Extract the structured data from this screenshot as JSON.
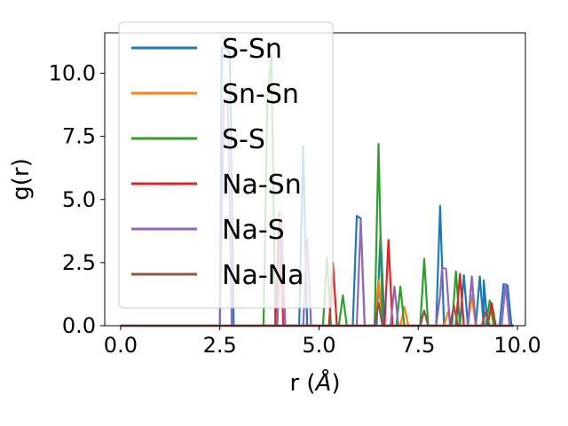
{
  "chart_data": {
    "type": "line",
    "title": "",
    "xlabel_base": "r (",
    "xlabel_unit": "Å",
    "xlabel_tail": ")",
    "ylabel": "g(r)",
    "xlim": [
      -0.4,
      10.2
    ],
    "ylim": [
      0,
      11.6
    ],
    "xticks": [
      0,
      2.5,
      5,
      7.5,
      10
    ],
    "xtick_labels": [
      "0.0",
      "2.5",
      "5.0",
      "7.5",
      "10.0"
    ],
    "yticks": [
      0,
      2.5,
      5,
      7.5,
      10
    ],
    "ytick_labels": [
      "0.0",
      "2.5",
      "5.0",
      "7.5",
      "10.0"
    ],
    "grid": false,
    "legend_position": "upper-left",
    "series": [
      {
        "name": "S-Sn",
        "color": "#1f77b4",
        "points": [
          [
            0,
            0
          ],
          [
            2.5,
            0
          ],
          [
            2.55,
            11.0
          ],
          [
            2.65,
            11.0
          ],
          [
            2.75,
            10.8
          ],
          [
            2.85,
            0
          ],
          [
            4.5,
            0
          ],
          [
            4.6,
            7.1
          ],
          [
            4.7,
            0
          ],
          [
            5.85,
            0
          ],
          [
            5.95,
            4.35
          ],
          [
            6.05,
            4.25
          ],
          [
            6.15,
            0
          ],
          [
            6.45,
            0
          ],
          [
            6.55,
            3.6
          ],
          [
            6.65,
            0
          ],
          [
            7.95,
            0
          ],
          [
            8.05,
            4.75
          ],
          [
            8.15,
            0
          ],
          [
            8.55,
            0
          ],
          [
            8.65,
            2.0
          ],
          [
            8.75,
            0
          ],
          [
            8.95,
            0
          ],
          [
            9.05,
            1.95
          ],
          [
            9.15,
            0
          ],
          [
            9.15,
            1.8
          ],
          [
            9.25,
            0
          ],
          [
            9.55,
            0
          ],
          [
            9.65,
            1.65
          ],
          [
            9.75,
            1.6
          ],
          [
            9.85,
            0
          ],
          [
            9.9,
            0
          ]
        ]
      },
      {
        "name": "Sn-Sn",
        "color": "#ff7f0e",
        "points": [
          [
            0,
            0
          ],
          [
            6.4,
            0
          ],
          [
            6.5,
            1.8
          ],
          [
            6.6,
            0
          ],
          [
            7.05,
            0
          ],
          [
            7.15,
            0.75
          ],
          [
            7.25,
            0
          ],
          [
            8.15,
            0
          ],
          [
            8.25,
            0.55
          ],
          [
            8.35,
            0
          ],
          [
            8.75,
            0
          ],
          [
            8.85,
            1.2
          ],
          [
            8.95,
            0
          ],
          [
            9.9,
            0
          ]
        ]
      },
      {
        "name": "S-S",
        "color": "#2ca02c",
        "points": [
          [
            0,
            0
          ],
          [
            3.6,
            0
          ],
          [
            3.7,
            9.0
          ],
          [
            3.8,
            10.8
          ],
          [
            3.9,
            0
          ],
          [
            5.1,
            0
          ],
          [
            5.2,
            2.7
          ],
          [
            5.3,
            0
          ],
          [
            5.5,
            0
          ],
          [
            5.6,
            1.2
          ],
          [
            5.7,
            0
          ],
          [
            6.4,
            0
          ],
          [
            6.5,
            7.2
          ],
          [
            6.6,
            0
          ],
          [
            6.95,
            0
          ],
          [
            7.05,
            1.55
          ],
          [
            7.15,
            0
          ],
          [
            7.55,
            0
          ],
          [
            7.65,
            2.65
          ],
          [
            7.75,
            0
          ],
          [
            8.35,
            0
          ],
          [
            8.45,
            2.15
          ],
          [
            8.55,
            0
          ],
          [
            8.75,
            0
          ],
          [
            8.85,
            1.95
          ],
          [
            8.95,
            0
          ],
          [
            9.2,
            0
          ],
          [
            9.3,
            1.0
          ],
          [
            9.4,
            0
          ],
          [
            9.9,
            0
          ]
        ]
      },
      {
        "name": "Na-Sn",
        "color": "#d62728",
        "points": [
          [
            0,
            0
          ],
          [
            3.9,
            0
          ],
          [
            4.0,
            4.5
          ],
          [
            4.1,
            0
          ],
          [
            5.25,
            0
          ],
          [
            5.35,
            2.5
          ],
          [
            5.45,
            0
          ],
          [
            6.65,
            0
          ],
          [
            6.75,
            3.4
          ],
          [
            6.85,
            0
          ],
          [
            8.45,
            0
          ],
          [
            8.55,
            2.05
          ],
          [
            8.65,
            0
          ],
          [
            9.25,
            0
          ],
          [
            9.35,
            0.9
          ],
          [
            9.45,
            0
          ],
          [
            9.9,
            0
          ]
        ]
      },
      {
        "name": "Na-S",
        "color": "#9467bd",
        "points": [
          [
            0,
            0
          ],
          [
            2.5,
            0
          ],
          [
            2.6,
            8.8
          ],
          [
            2.7,
            9.0
          ],
          [
            2.8,
            0
          ],
          [
            3.95,
            0
          ],
          [
            4.05,
            4.2
          ],
          [
            4.15,
            0
          ],
          [
            4.6,
            0
          ],
          [
            4.7,
            3.45
          ],
          [
            4.8,
            0
          ],
          [
            5.95,
            0
          ],
          [
            6.05,
            4.15
          ],
          [
            6.15,
            0
          ],
          [
            6.8,
            0
          ],
          [
            6.9,
            1.55
          ],
          [
            7.0,
            0
          ],
          [
            7.95,
            0
          ],
          [
            8.05,
            1.2
          ],
          [
            8.1,
            2.3
          ],
          [
            8.2,
            2.25
          ],
          [
            8.3,
            0
          ],
          [
            8.75,
            0
          ],
          [
            8.85,
            1.9
          ],
          [
            8.95,
            0
          ],
          [
            9.6,
            0
          ],
          [
            9.7,
            1.65
          ],
          [
            9.8,
            0
          ],
          [
            9.9,
            0
          ]
        ]
      },
      {
        "name": "Na-Na",
        "color": "#8c564b",
        "points": [
          [
            0,
            0
          ],
          [
            6.4,
            0
          ],
          [
            6.5,
            0.9
          ],
          [
            6.6,
            0
          ],
          [
            7.55,
            0
          ],
          [
            7.65,
            0.6
          ],
          [
            7.75,
            0
          ],
          [
            8.3,
            0
          ],
          [
            8.4,
            0.8
          ],
          [
            8.5,
            0
          ],
          [
            9.1,
            0
          ],
          [
            9.2,
            0.55
          ],
          [
            9.3,
            0
          ],
          [
            9.9,
            0
          ]
        ]
      }
    ]
  }
}
